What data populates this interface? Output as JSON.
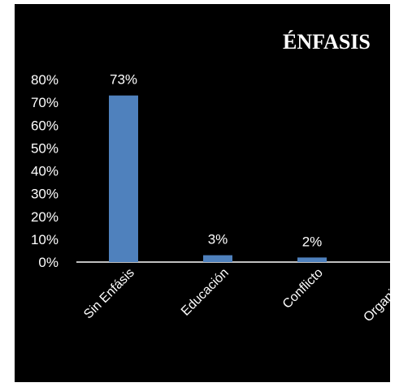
{
  "chart_data": {
    "type": "bar",
    "title": "ÉNFASIS",
    "categories": [
      "Sin Enfásis",
      "Educación",
      "Conflicto",
      "Organizacio"
    ],
    "values": [
      73,
      3,
      2,
      null
    ],
    "data_labels": [
      "73%",
      "3%",
      "2%",
      ""
    ],
    "yticks": [
      "0%",
      "10%",
      "20%",
      "30%",
      "40%",
      "50%",
      "60%",
      "70%",
      "80%"
    ],
    "ylim": [
      0,
      80
    ],
    "grid": false,
    "bar_color": "#4f81bd",
    "background": "#000000",
    "text_color": "#ffffff"
  }
}
